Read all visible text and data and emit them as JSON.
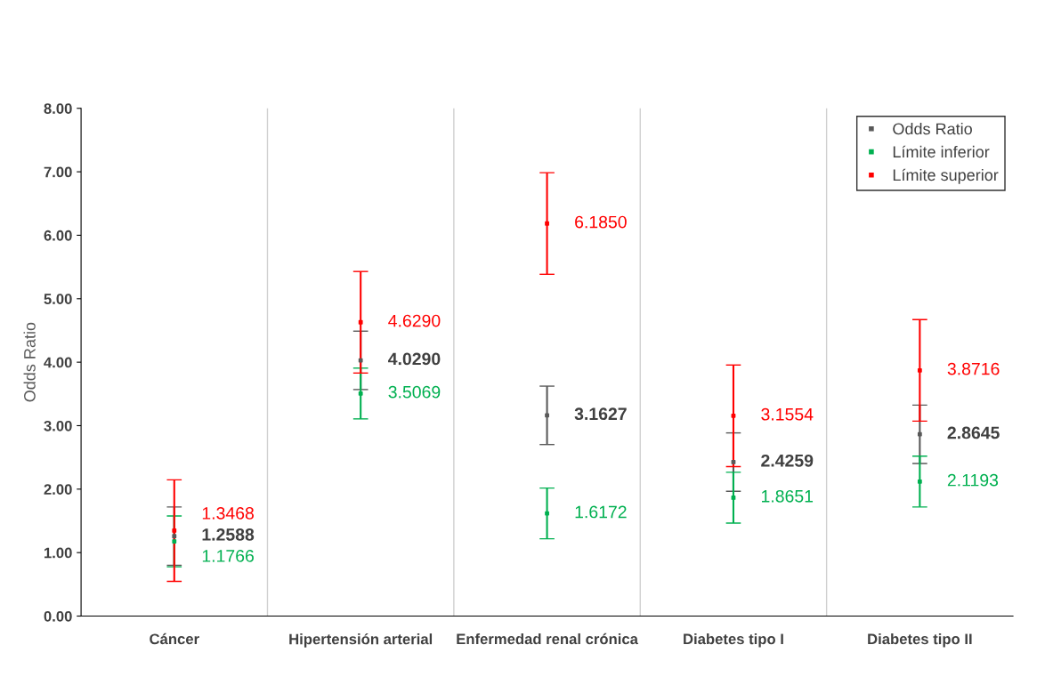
{
  "chart_data": {
    "type": "scatter",
    "ylabel": "Odds Ratio",
    "categories": [
      "Cáncer",
      "Hipertensión arterial",
      "Enfermedad renal crónica",
      "Diabetes tipo I",
      "Diabetes tipo II"
    ],
    "series": [
      {
        "name": "Odds Ratio",
        "color": "#595959",
        "values": [
          1.2588,
          4.029,
          3.1627,
          2.4259,
          2.8645
        ],
        "errors": [
          0.46,
          0.46,
          0.46,
          0.46,
          0.46
        ],
        "value_labels": [
          "1.2588",
          "4.0290",
          "3.1627",
          "2.4259",
          "2.8645"
        ]
      },
      {
        "name": "Límite inferior",
        "color": "#00b050",
        "values": [
          1.1766,
          3.5069,
          1.6172,
          1.8651,
          2.1193
        ],
        "errors": [
          0.4,
          0.4,
          0.4,
          0.4,
          0.4
        ],
        "value_labels": [
          "1.1766",
          "3.5069",
          "1.6172",
          "1.8651",
          "2.1193"
        ]
      },
      {
        "name": "Límite superior",
        "color": "#ff0000",
        "values": [
          1.3468,
          4.629,
          6.185,
          3.1554,
          3.8716
        ],
        "errors": [
          0.8,
          0.8,
          0.8,
          0.8,
          0.8
        ],
        "value_labels": [
          "1.3468",
          "4.6290",
          "6.1850",
          "3.1554",
          "3.8716"
        ]
      }
    ],
    "ylim": [
      0,
      8
    ],
    "yticks": [
      {
        "value": 0,
        "label": "0.00"
      },
      {
        "value": 1,
        "label": "1.00"
      },
      {
        "value": 2,
        "label": "2.00"
      },
      {
        "value": 3,
        "label": "3.00"
      },
      {
        "value": 4,
        "label": "4.00"
      },
      {
        "value": 5,
        "label": "5.00"
      },
      {
        "value": 6,
        "label": "6.00"
      },
      {
        "value": 7,
        "label": "7.00"
      },
      {
        "value": 8,
        "label": "8.00"
      }
    ],
    "grid": "x",
    "legend": "top right",
    "marker": "square"
  }
}
